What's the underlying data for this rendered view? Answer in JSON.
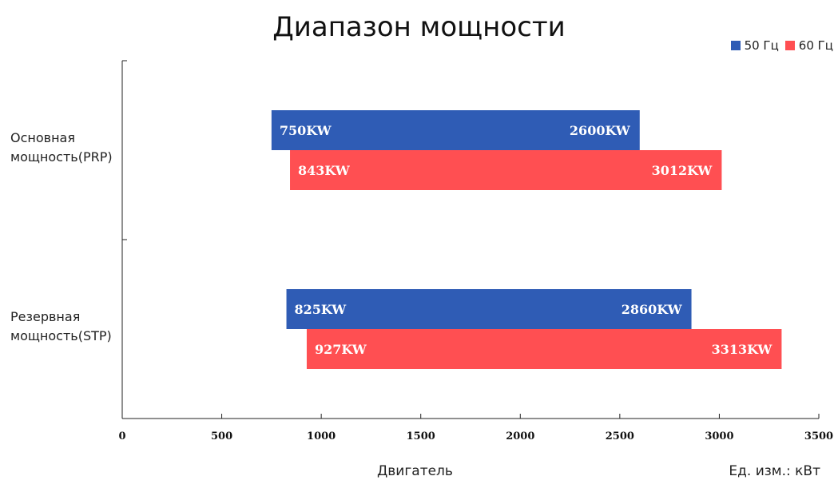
{
  "chart_data": {
    "type": "bar",
    "orientation": "horizontal",
    "range_bars": true,
    "title": "Диапазон мощности",
    "xlabel": "Двигатель",
    "unit_label": "Ед. изм.: кВт",
    "categories": [
      [
        "Основная",
        "мощность(PRP)"
      ],
      [
        "Резервная",
        "мощность(STP)"
      ]
    ],
    "series": [
      {
        "name": "50 Гц",
        "color": "#2f5cb5",
        "ranges": [
          [
            750,
            2600
          ],
          [
            825,
            2860
          ]
        ],
        "labels": [
          [
            "750KW",
            "2600KW"
          ],
          [
            "825KW",
            "2860KW"
          ]
        ]
      },
      {
        "name": "60 Гц",
        "color": "#ff4f52",
        "ranges": [
          [
            843,
            3012
          ],
          [
            927,
            3313
          ]
        ],
        "labels": [
          [
            "843KW",
            "3012KW"
          ],
          [
            "927KW",
            "3313KW"
          ]
        ]
      }
    ],
    "xlim": [
      0,
      3500
    ],
    "xticks": [
      0,
      500,
      1000,
      1500,
      2000,
      2500,
      3000,
      3500
    ],
    "legend_position": "top-right",
    "grid": false
  }
}
